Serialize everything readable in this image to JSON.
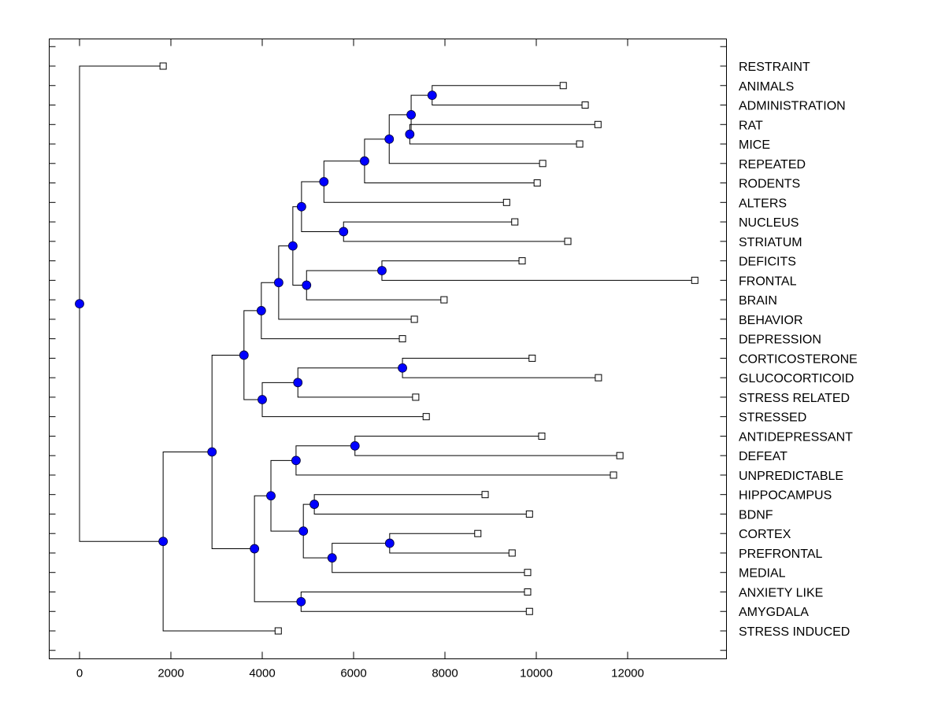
{
  "chart_data": {
    "type": "dendrogram",
    "title": "",
    "xlabel": "",
    "ylabel": "",
    "xlim": [
      -650,
      14100
    ],
    "x_ticks": [
      0,
      2000,
      4000,
      6000,
      8000,
      10000,
      12000
    ],
    "x_tick_labels": [
      "0",
      "2000",
      "4000",
      "6000",
      "8000",
      "10000",
      "12000"
    ],
    "grid": false,
    "node_color": "#0000ff",
    "leaf_marker": "open-square",
    "leaves": [
      {
        "id": "RESTRAINT",
        "label": "RESTRAINT",
        "value": 1830
      },
      {
        "id": "ANIMALS",
        "label": "ANIMALS",
        "value": 10590
      },
      {
        "id": "ADMINISTRATION",
        "label": "ADMINISTRATION",
        "value": 11070
      },
      {
        "id": "RAT",
        "label": "RAT",
        "value": 11350
      },
      {
        "id": "MICE",
        "label": "MICE",
        "value": 10950
      },
      {
        "id": "REPEATED",
        "label": "REPEATED",
        "value": 10140
      },
      {
        "id": "RODENTS",
        "label": "RODENTS",
        "value": 10020
      },
      {
        "id": "ALTERS",
        "label": "ALTERS",
        "value": 9350
      },
      {
        "id": "NUCLEUS",
        "label": "NUCLEUS",
        "value": 9530
      },
      {
        "id": "STRIATUM",
        "label": "STRIATUM",
        "value": 10690
      },
      {
        "id": "DEFICITS",
        "label": "DEFICITS",
        "value": 9690
      },
      {
        "id": "FRONTAL",
        "label": "FRONTAL",
        "value": 13470
      },
      {
        "id": "BRAIN",
        "label": "BRAIN",
        "value": 7980
      },
      {
        "id": "BEHAVIOR",
        "label": "BEHAVIOR",
        "value": 7330
      },
      {
        "id": "DEPRESSION",
        "label": "DEPRESSION",
        "value": 7070
      },
      {
        "id": "CORTICOSTERONE",
        "label": "CORTICOSTERONE",
        "value": 9910
      },
      {
        "id": "GLUCOCORTICOID",
        "label": "GLUCOCORTICOID",
        "value": 11360
      },
      {
        "id": "STRESS_RELATED",
        "label": "STRESS RELATED",
        "value": 7360
      },
      {
        "id": "STRESSED",
        "label": "STRESSED",
        "value": 7590
      },
      {
        "id": "ANTIDEPRESSANT",
        "label": "ANTIDEPRESSANT",
        "value": 10120
      },
      {
        "id": "DEFEAT",
        "label": "DEFEAT",
        "value": 11830
      },
      {
        "id": "UNPREDICTABLE",
        "label": "UNPREDICTABLE",
        "value": 11690
      },
      {
        "id": "HIPPOCAMPUS",
        "label": "HIPPOCAMPUS",
        "value": 8880
      },
      {
        "id": "BDNF",
        "label": "BDNF",
        "value": 9850
      },
      {
        "id": "CORTEX",
        "label": "CORTEX",
        "value": 8720
      },
      {
        "id": "PREFRONTAL",
        "label": "PREFRONTAL",
        "value": 9470
      },
      {
        "id": "MEDIAL",
        "label": "MEDIAL",
        "value": 9810
      },
      {
        "id": "ANXIETY_LIKE",
        "label": "ANXIETY LIKE",
        "value": 9810
      },
      {
        "id": "AMYGDALA",
        "label": "AMYGDALA",
        "value": 9850
      },
      {
        "id": "STRESS_INDUCED",
        "label": "STRESS INDUCED",
        "value": 4350
      }
    ],
    "nodes": [
      {
        "id": "n1",
        "value": 0,
        "children": [
          "RESTRAINT",
          "n2"
        ]
      },
      {
        "id": "n2",
        "value": 1830,
        "children": [
          "n3",
          "STRESS_INDUCED"
        ]
      },
      {
        "id": "n3",
        "value": 2900,
        "children": [
          "n4",
          "n20"
        ]
      },
      {
        "id": "n4",
        "value": 3600,
        "children": [
          "n5",
          "n17"
        ]
      },
      {
        "id": "n5",
        "value": 3980,
        "children": [
          "n6",
          "DEPRESSION"
        ]
      },
      {
        "id": "n6",
        "value": 4360,
        "children": [
          "n7",
          "BEHAVIOR"
        ]
      },
      {
        "id": "n7",
        "value": 4670,
        "children": [
          "n8",
          "n15"
        ]
      },
      {
        "id": "n8",
        "value": 4860,
        "children": [
          "n9",
          "n14"
        ]
      },
      {
        "id": "n9",
        "value": 5350,
        "children": [
          "n10",
          "ALTERS"
        ]
      },
      {
        "id": "n10",
        "value": 6240,
        "children": [
          "n11",
          "RODENTS"
        ]
      },
      {
        "id": "n11",
        "value": 6780,
        "children": [
          "n12",
          "REPEATED"
        ]
      },
      {
        "id": "n12",
        "value": 7260,
        "children": [
          "n13",
          "n12b"
        ]
      },
      {
        "id": "n13",
        "value": 7720,
        "children": [
          "ANIMALS",
          "ADMINISTRATION"
        ]
      },
      {
        "id": "n12b",
        "value": 7230,
        "children": [
          "RAT",
          "MICE"
        ]
      },
      {
        "id": "n14",
        "value": 5780,
        "children": [
          "NUCLEUS",
          "STRIATUM"
        ]
      },
      {
        "id": "n15",
        "value": 4970,
        "children": [
          "n16",
          "BRAIN"
        ]
      },
      {
        "id": "n16",
        "value": 6620,
        "children": [
          "DEFICITS",
          "FRONTAL"
        ]
      },
      {
        "id": "n17",
        "value": 4000,
        "children": [
          "n18",
          "STRESSED"
        ]
      },
      {
        "id": "n18",
        "value": 4780,
        "children": [
          "n19",
          "STRESS_RELATED"
        ]
      },
      {
        "id": "n19",
        "value": 7070,
        "children": [
          "CORTICOSTERONE",
          "GLUCOCORTICOID"
        ]
      },
      {
        "id": "n20",
        "value": 3830,
        "children": [
          "n21",
          "n28"
        ]
      },
      {
        "id": "n21",
        "value": 4190,
        "children": [
          "n22",
          "n24"
        ]
      },
      {
        "id": "n22",
        "value": 4740,
        "children": [
          "n23",
          "UNPREDICTABLE"
        ]
      },
      {
        "id": "n23",
        "value": 6030,
        "children": [
          "ANTIDEPRESSANT",
          "DEFEAT"
        ]
      },
      {
        "id": "n24",
        "value": 4900,
        "children": [
          "n25",
          "n26"
        ]
      },
      {
        "id": "n25",
        "value": 5140,
        "children": [
          "HIPPOCAMPUS",
          "BDNF"
        ]
      },
      {
        "id": "n26",
        "value": 5530,
        "children": [
          "n27",
          "MEDIAL"
        ]
      },
      {
        "id": "n27",
        "value": 6790,
        "children": [
          "CORTEX",
          "PREFRONTAL"
        ]
      },
      {
        "id": "n28",
        "value": 4850,
        "children": [
          "ANXIETY_LIKE",
          "AMYGDALA"
        ]
      }
    ]
  }
}
